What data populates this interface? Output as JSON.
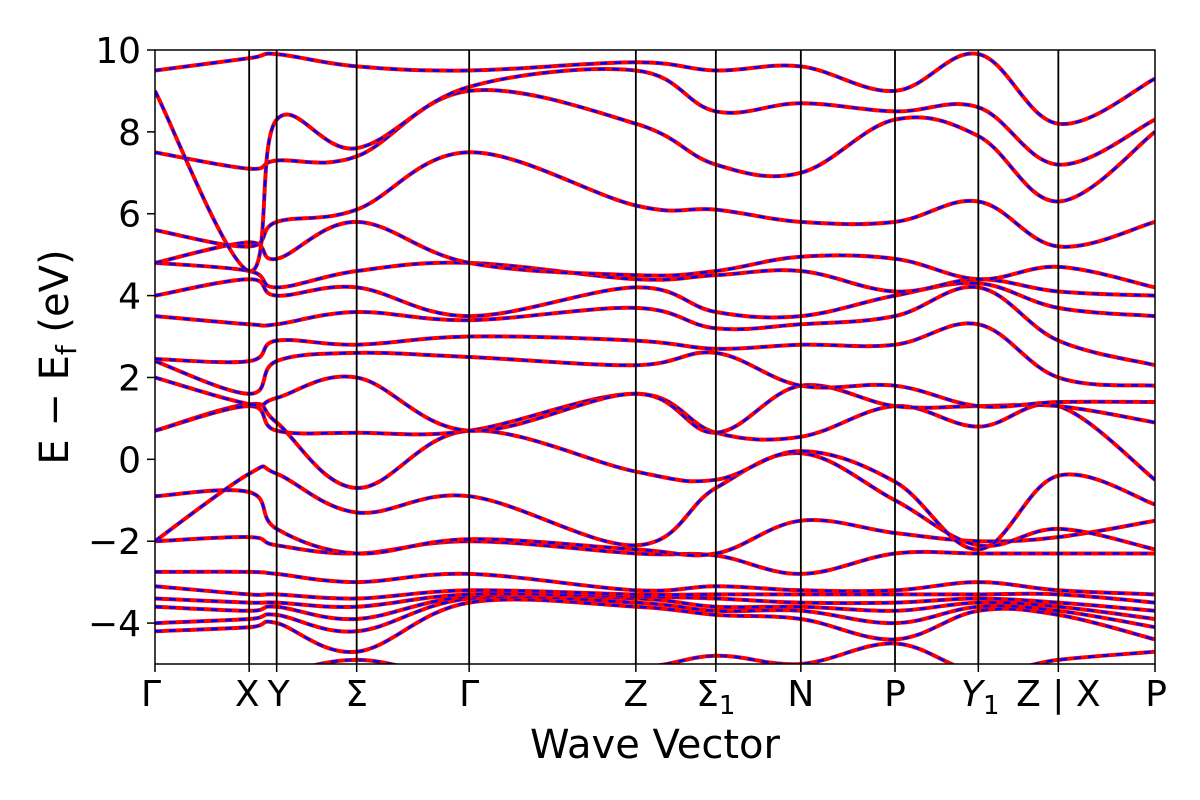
{
  "chart_data": {
    "type": "line",
    "title": "",
    "xlabel": "Wave Vector",
    "ylabel_main": "E − E",
    "ylabel_sub": "f",
    "ylabel_tail": " (eV)",
    "ylim": [
      -5,
      10
    ],
    "yticks": [
      -4,
      -2,
      0,
      2,
      4,
      6,
      8,
      10
    ],
    "yticklabels": [
      "−4",
      "−2",
      "0",
      "2",
      "4",
      "6",
      "8",
      "10"
    ],
    "xlim": [
      0,
      12
    ],
    "kpoints": [
      {
        "x": 0,
        "label": "Γ"
      },
      {
        "x": 1.13,
        "label": "X"
      },
      {
        "x": 1.46,
        "label": "Y"
      },
      {
        "x": 2.42,
        "label": "Σ"
      },
      {
        "x": 3.77,
        "label": "Γ"
      },
      {
        "x": 5.77,
        "label": "Z"
      },
      {
        "x": 6.73,
        "label": "Σ",
        "sub": "1"
      },
      {
        "x": 7.75,
        "label": "N"
      },
      {
        "x": 8.88,
        "label": "P"
      },
      {
        "x": 9.88,
        "label": "Y",
        "sub": "1",
        "italic": true
      },
      {
        "x": 10.84,
        "label": "Z | X"
      },
      {
        "x": 12,
        "label": "P"
      }
    ],
    "series_styles": [
      {
        "role": "primary",
        "color": "#ff0000",
        "style": "solid"
      },
      {
        "role": "overlay",
        "color": "#0000ff",
        "style": "dashed"
      }
    ],
    "bands": [
      [
        [
          0,
          -5.4
        ],
        [
          1.13,
          -5.6
        ],
        [
          1.46,
          -5.3
        ],
        [
          2.42,
          -4.9
        ],
        [
          3.77,
          -5.3
        ],
        [
          5.77,
          -5.1
        ],
        [
          6.73,
          -4.8
        ],
        [
          7.75,
          -5.0
        ],
        [
          8.88,
          -4.5
        ],
        [
          9.88,
          -5.2
        ],
        [
          10.84,
          -4.9
        ],
        [
          12,
          -4.7
        ]
      ],
      [
        [
          0,
          -4.2
        ],
        [
          1.13,
          -4.1
        ],
        [
          1.46,
          -4.0
        ],
        [
          2.42,
          -4.7
        ],
        [
          3.77,
          -3.5
        ],
        [
          5.77,
          -3.6
        ],
        [
          6.73,
          -3.8
        ],
        [
          7.75,
          -3.9
        ],
        [
          8.88,
          -4.4
        ],
        [
          9.88,
          -3.7
        ],
        [
          10.84,
          -3.8
        ],
        [
          12,
          -4.4
        ]
      ],
      [
        [
          0,
          -4.0
        ],
        [
          1.13,
          -3.9
        ],
        [
          1.46,
          -3.8
        ],
        [
          2.42,
          -4.2
        ],
        [
          3.77,
          -3.4
        ],
        [
          5.77,
          -3.5
        ],
        [
          6.73,
          -3.7
        ],
        [
          7.75,
          -3.7
        ],
        [
          8.88,
          -4.0
        ],
        [
          9.88,
          -3.6
        ],
        [
          10.84,
          -3.7
        ],
        [
          12,
          -4.1
        ]
      ],
      [
        [
          0,
          -3.6
        ],
        [
          1.13,
          -3.7
        ],
        [
          1.46,
          -3.6
        ],
        [
          2.42,
          -3.9
        ],
        [
          3.77,
          -3.35
        ],
        [
          5.77,
          -3.4
        ],
        [
          6.73,
          -3.6
        ],
        [
          7.75,
          -3.6
        ],
        [
          8.88,
          -3.7
        ],
        [
          9.88,
          -3.5
        ],
        [
          10.84,
          -3.6
        ],
        [
          12,
          -3.9
        ]
      ],
      [
        [
          0,
          -3.4
        ],
        [
          1.13,
          -3.5
        ],
        [
          1.46,
          -3.5
        ],
        [
          2.42,
          -3.6
        ],
        [
          3.77,
          -3.3
        ],
        [
          5.77,
          -3.35
        ],
        [
          6.73,
          -3.4
        ],
        [
          7.75,
          -3.5
        ],
        [
          8.88,
          -3.5
        ],
        [
          9.88,
          -3.4
        ],
        [
          10.84,
          -3.5
        ],
        [
          12,
          -3.7
        ]
      ],
      [
        [
          0,
          -3.1
        ],
        [
          1.13,
          -3.3
        ],
        [
          1.46,
          -3.3
        ],
        [
          2.42,
          -3.4
        ],
        [
          3.77,
          -3.2
        ],
        [
          5.77,
          -3.3
        ],
        [
          6.73,
          -3.3
        ],
        [
          7.75,
          -3.3
        ],
        [
          8.88,
          -3.3
        ],
        [
          9.88,
          -3.3
        ],
        [
          10.84,
          -3.3
        ],
        [
          12,
          -3.5
        ]
      ],
      [
        [
          0,
          -2.75
        ],
        [
          1.13,
          -2.75
        ],
        [
          1.46,
          -2.8
        ],
        [
          2.42,
          -3.0
        ],
        [
          3.77,
          -2.8
        ],
        [
          5.77,
          -3.2
        ],
        [
          6.73,
          -3.1
        ],
        [
          7.75,
          -3.2
        ],
        [
          8.88,
          -3.2
        ],
        [
          9.88,
          -3.0
        ],
        [
          10.84,
          -3.2
        ],
        [
          12,
          -3.3
        ]
      ],
      [
        [
          0,
          -2.0
        ],
        [
          1.13,
          -1.9
        ],
        [
          1.46,
          -2.1
        ],
        [
          2.42,
          -2.3
        ],
        [
          3.77,
          -2.0
        ],
        [
          5.77,
          -2.3
        ],
        [
          6.73,
          -2.35
        ],
        [
          7.75,
          -2.8
        ],
        [
          8.88,
          -2.3
        ],
        [
          9.88,
          -2.3
        ],
        [
          10.84,
          -2.3
        ],
        [
          12,
          -2.3
        ]
      ],
      [
        [
          0,
          -0.9
        ],
        [
          1.13,
          -0.8
        ],
        [
          1.46,
          -1.7
        ],
        [
          2.42,
          -2.3
        ],
        [
          3.77,
          -1.95
        ],
        [
          5.77,
          -2.2
        ],
        [
          6.73,
          -2.3
        ],
        [
          7.75,
          -1.5
        ],
        [
          8.88,
          -1.8
        ],
        [
          9.88,
          -2.0
        ],
        [
          10.84,
          -1.9
        ],
        [
          12,
          -1.5
        ]
      ],
      [
        [
          0,
          -2.0
        ],
        [
          1.13,
          -0.35
        ],
        [
          1.46,
          -0.35
        ],
        [
          2.42,
          -1.3
        ],
        [
          3.77,
          -0.9
        ],
        [
          5.77,
          -2.1
        ],
        [
          6.73,
          -0.7
        ],
        [
          7.75,
          0.15
        ],
        [
          8.88,
          -1.0
        ],
        [
          9.88,
          -2.1
        ],
        [
          10.84,
          -1.7
        ],
        [
          12,
          -2.2
        ]
      ],
      [
        [
          0,
          0.7
        ],
        [
          1.13,
          1.35
        ],
        [
          1.46,
          0.9
        ],
        [
          2.42,
          -0.7
        ],
        [
          3.77,
          0.7
        ],
        [
          5.77,
          -0.3
        ],
        [
          6.73,
          -0.5
        ],
        [
          7.75,
          0.2
        ],
        [
          8.88,
          -0.55
        ],
        [
          9.88,
          -2.2
        ],
        [
          10.84,
          -0.4
        ],
        [
          12,
          -1.1
        ]
      ],
      [
        [
          0,
          0.7
        ],
        [
          1.13,
          1.3
        ],
        [
          1.46,
          0.7
        ],
        [
          2.42,
          0.65
        ],
        [
          3.77,
          0.7
        ],
        [
          5.77,
          1.6
        ],
        [
          6.73,
          0.65
        ],
        [
          7.75,
          0.55
        ],
        [
          8.88,
          1.3
        ],
        [
          9.88,
          0.8
        ],
        [
          10.84,
          1.3
        ],
        [
          12,
          -0.5
        ]
      ],
      [
        [
          0,
          2.0
        ],
        [
          1.13,
          1.35
        ],
        [
          1.46,
          1.5
        ],
        [
          2.42,
          2.0
        ],
        [
          3.77,
          0.7
        ],
        [
          5.77,
          1.6
        ],
        [
          6.73,
          0.65
        ],
        [
          7.75,
          1.8
        ],
        [
          8.88,
          1.3
        ],
        [
          9.88,
          1.3
        ],
        [
          10.84,
          1.3
        ],
        [
          12,
          0.9
        ]
      ],
      [
        [
          0,
          2.4
        ],
        [
          1.13,
          1.6
        ],
        [
          1.46,
          2.4
        ],
        [
          2.42,
          2.6
        ],
        [
          3.77,
          2.5
        ],
        [
          5.77,
          2.3
        ],
        [
          6.73,
          2.6
        ],
        [
          7.75,
          1.8
        ],
        [
          8.88,
          1.8
        ],
        [
          9.88,
          1.3
        ],
        [
          10.84,
          1.4
        ],
        [
          12,
          1.4
        ]
      ],
      [
        [
          0,
          2.45
        ],
        [
          1.13,
          2.4
        ],
        [
          1.46,
          2.9
        ],
        [
          2.42,
          2.8
        ],
        [
          3.77,
          3.0
        ],
        [
          5.77,
          2.9
        ],
        [
          6.73,
          2.7
        ],
        [
          7.75,
          2.8
        ],
        [
          8.88,
          2.8
        ],
        [
          9.88,
          3.3
        ],
        [
          10.84,
          2.0
        ],
        [
          12,
          1.8
        ]
      ],
      [
        [
          0,
          3.5
        ],
        [
          1.13,
          3.3
        ],
        [
          1.46,
          3.3
        ],
        [
          2.42,
          3.6
        ],
        [
          3.77,
          3.4
        ],
        [
          5.77,
          3.7
        ],
        [
          6.73,
          3.2
        ],
        [
          7.75,
          3.3
        ],
        [
          8.88,
          3.5
        ],
        [
          9.88,
          4.2
        ],
        [
          10.84,
          2.9
        ],
        [
          12,
          2.3
        ]
      ],
      [
        [
          0,
          4.0
        ],
        [
          1.13,
          4.4
        ],
        [
          1.46,
          4.0
        ],
        [
          2.42,
          4.2
        ],
        [
          3.77,
          3.5
        ],
        [
          5.77,
          4.2
        ],
        [
          6.73,
          3.6
        ],
        [
          7.75,
          3.5
        ],
        [
          8.88,
          4.0
        ],
        [
          9.88,
          4.3
        ],
        [
          10.84,
          3.7
        ],
        [
          12,
          3.5
        ]
      ],
      [
        [
          0,
          4.8
        ],
        [
          1.13,
          4.6
        ],
        [
          1.46,
          4.2
        ],
        [
          2.42,
          4.6
        ],
        [
          3.77,
          4.8
        ],
        [
          5.77,
          4.4
        ],
        [
          6.73,
          4.5
        ],
        [
          7.75,
          4.6
        ],
        [
          8.88,
          4.1
        ],
        [
          9.88,
          4.4
        ],
        [
          10.84,
          4.1
        ],
        [
          12,
          4.0
        ]
      ],
      [
        [
          0,
          4.8
        ],
        [
          1.13,
          5.3
        ],
        [
          1.46,
          4.9
        ],
        [
          2.42,
          5.8
        ],
        [
          3.77,
          4.8
        ],
        [
          5.77,
          4.5
        ],
        [
          6.73,
          4.6
        ],
        [
          7.75,
          4.95
        ],
        [
          8.88,
          4.9
        ],
        [
          9.88,
          4.4
        ],
        [
          10.84,
          4.7
        ],
        [
          12,
          4.2
        ]
      ],
      [
        [
          0,
          5.6
        ],
        [
          1.13,
          5.2
        ],
        [
          1.46,
          5.8
        ],
        [
          2.42,
          6.1
        ],
        [
          3.77,
          7.5
        ],
        [
          5.77,
          6.2
        ],
        [
          6.73,
          6.1
        ],
        [
          7.75,
          5.8
        ],
        [
          8.88,
          5.8
        ],
        [
          9.88,
          6.3
        ],
        [
          10.84,
          5.2
        ],
        [
          12,
          5.8
        ]
      ],
      [
        [
          0,
          7.5
        ],
        [
          1.13,
          7.1
        ],
        [
          1.46,
          7.3
        ],
        [
          2.42,
          7.4
        ],
        [
          3.77,
          9.0
        ],
        [
          5.77,
          8.2
        ],
        [
          6.73,
          7.2
        ],
        [
          7.75,
          7.0
        ],
        [
          8.88,
          8.3
        ],
        [
          9.88,
          7.9
        ],
        [
          10.84,
          6.3
        ],
        [
          12,
          8.0
        ]
      ],
      [
        [
          0,
          9.0
        ],
        [
          1.13,
          4.6
        ],
        [
          1.46,
          8.3
        ],
        [
          2.42,
          7.6
        ],
        [
          3.77,
          9.1
        ],
        [
          5.77,
          9.5
        ],
        [
          6.73,
          8.5
        ],
        [
          7.75,
          8.7
        ],
        [
          8.88,
          8.5
        ],
        [
          9.88,
          8.6
        ],
        [
          10.84,
          7.2
        ],
        [
          12,
          8.3
        ]
      ],
      [
        [
          0,
          9.5
        ],
        [
          1.13,
          9.8
        ],
        [
          1.46,
          9.9
        ],
        [
          2.42,
          9.6
        ],
        [
          3.77,
          9.5
        ],
        [
          5.77,
          9.7
        ],
        [
          6.73,
          9.5
        ],
        [
          7.75,
          9.6
        ],
        [
          8.88,
          9.0
        ],
        [
          9.88,
          9.9
        ],
        [
          10.84,
          8.2
        ],
        [
          12,
          9.3
        ]
      ]
    ]
  }
}
